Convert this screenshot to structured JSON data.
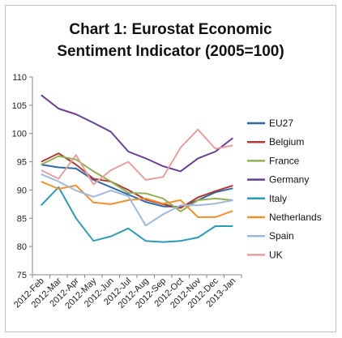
{
  "chart_data": {
    "type": "line",
    "title_lines": [
      "Chart 1: Eurostat Economic",
      "Sentiment Indicator (2005=100)"
    ],
    "x": [
      "2012-Feb",
      "2012-Mar",
      "2012-Apr",
      "2012-May",
      "2012-Jun",
      "2012-Jul",
      "2012-Aug",
      "2012-Sep",
      "2012-Oct",
      "2012-Nov",
      "2012-Dec",
      "2013-Jan"
    ],
    "ylim": [
      75,
      110
    ],
    "yticks": [
      75,
      80,
      85,
      90,
      95,
      100,
      105,
      110
    ],
    "grid": false,
    "legend_position": "right",
    "series": [
      {
        "name": "EU27",
        "color": "#2e6aa6",
        "values": [
          94.5,
          94.0,
          93.8,
          91.8,
          90.5,
          89.2,
          87.9,
          87.1,
          87.0,
          88.2,
          89.6,
          90.3
        ]
      },
      {
        "name": "Belgium",
        "color": "#b03a36",
        "values": [
          95.0,
          96.5,
          94.5,
          92.0,
          91.5,
          90.0,
          88.3,
          87.5,
          86.8,
          88.7,
          89.8,
          90.8
        ]
      },
      {
        "name": "France",
        "color": "#92b050",
        "values": [
          94.5,
          96.0,
          95.4,
          93.3,
          91.5,
          89.5,
          89.4,
          88.5,
          86.2,
          88.2,
          88.5,
          88.2
        ]
      },
      {
        "name": "Germany",
        "color": "#6a3f92",
        "values": [
          106.8,
          104.4,
          103.4,
          101.9,
          100.3,
          96.8,
          95.6,
          94.2,
          93.3,
          95.6,
          96.8,
          99.2
        ]
      },
      {
        "name": "Italy",
        "color": "#2a9bb3",
        "values": [
          87.3,
          90.5,
          85.0,
          81.0,
          81.8,
          83.2,
          81.0,
          80.8,
          81.0,
          81.6,
          83.6,
          83.6
        ]
      },
      {
        "name": "Netherlands",
        "color": "#f0912d",
        "values": [
          91.5,
          90.2,
          90.8,
          87.8,
          87.5,
          88.2,
          88.5,
          87.6,
          88.2,
          85.2,
          85.2,
          86.3
        ]
      },
      {
        "name": "Spain",
        "color": "#9fb8dc",
        "values": [
          92.8,
          91.5,
          89.9,
          88.8,
          89.9,
          88.9,
          83.7,
          85.7,
          87.3,
          87.3,
          87.6,
          88.2
        ]
      },
      {
        "name": "UK",
        "color": "#e4a0a0",
        "values": [
          93.5,
          92.0,
          96.2,
          91.0,
          93.5,
          95.0,
          91.8,
          92.3,
          97.5,
          100.7,
          97.3,
          97.9
        ]
      }
    ]
  }
}
